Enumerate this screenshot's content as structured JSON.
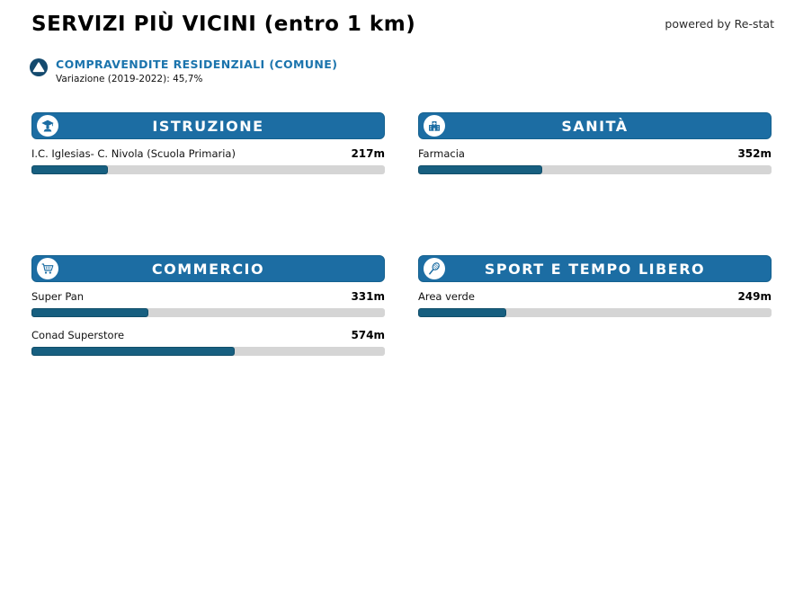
{
  "page": {
    "title": "SERVIZI PIÙ VICINI (entro 1 km)",
    "powered_by": "powered by Re-stat"
  },
  "trend": {
    "icon": "up-triangle-circle",
    "label": "COMPRAVENDITE RESIDENZIALI (COMUNE)",
    "sublabel": "Variazione (2019-2022): 45,7%"
  },
  "colors": {
    "header_blue": "#1c6da3",
    "bar_fill": "#175f80",
    "bar_track": "#d5d5d5",
    "accent_text_blue": "#1b74ad",
    "trend_circle_navy": "#144a6e"
  },
  "bar_scale": {
    "max_distance_m": 1000
  },
  "cards": [
    {
      "title": "ISTRUZIONE",
      "icon": "graduation-student",
      "items": [
        {
          "name": "I.C. Iglesias- C. Nivola (Scuola Primaria)",
          "distance": "217m",
          "distance_m": 217,
          "bar_percent": 21.7
        }
      ]
    },
    {
      "title": "SANITÀ",
      "icon": "hospital-building",
      "items": [
        {
          "name": "Farmacia",
          "distance": "352m",
          "distance_m": 352,
          "bar_percent": 35.2
        }
      ]
    },
    {
      "title": "COMMERCIO",
      "icon": "shopping-cart",
      "items": [
        {
          "name": "Super Pan",
          "distance": "331m",
          "distance_m": 331,
          "bar_percent": 33.1
        },
        {
          "name": "Conad Superstore",
          "distance": "574m",
          "distance_m": 574,
          "bar_percent": 57.4
        }
      ]
    },
    {
      "title": "SPORT E TEMPO LIBERO",
      "icon": "tennis-racket",
      "items": [
        {
          "name": "Area verde",
          "distance": "249m",
          "distance_m": 249,
          "bar_percent": 24.9
        }
      ]
    }
  ]
}
